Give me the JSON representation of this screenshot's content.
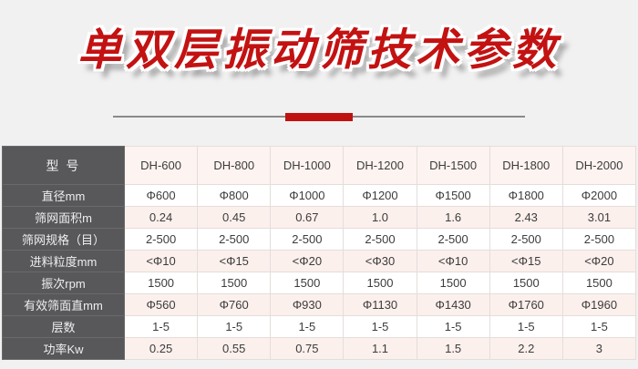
{
  "page": {
    "background": "#f1f1f1"
  },
  "title": {
    "text": "单双层振动筛技术参数",
    "color": "#c31212"
  },
  "divider": {
    "line_color": "#8a8a8a",
    "accent_color": "#c01111"
  },
  "table": {
    "corner_label": "型 号",
    "models": [
      "DH-600",
      "DH-800",
      "DH-1000",
      "DH-1200",
      "DH-1500",
      "DH-1800",
      "DH-2000"
    ],
    "rows": [
      {
        "label": "直径mm",
        "values": [
          "Φ600",
          "Φ800",
          "Φ1000",
          "Φ1200",
          "Φ1500",
          "Φ1800",
          "Φ2000"
        ]
      },
      {
        "label": "筛网面积m",
        "values": [
          "0.24",
          "0.45",
          "0.67",
          "1.0",
          "1.6",
          "2.43",
          "3.01"
        ]
      },
      {
        "label": "筛网规格（目）",
        "values": [
          "2-500",
          "2-500",
          "2-500",
          "2-500",
          "2-500",
          "2-500",
          "2-500"
        ]
      },
      {
        "label": "进料粒度mm",
        "values": [
          "<Φ10",
          "<Φ15",
          "<Φ20",
          "<Φ30",
          "<Φ10",
          "<Φ15",
          "<Φ20"
        ]
      },
      {
        "label": "振次rpm",
        "values": [
          "1500",
          "1500",
          "1500",
          "1500",
          "1500",
          "1500",
          "1500"
        ]
      },
      {
        "label": "有效筛面直mm",
        "values": [
          "Φ560",
          "Φ760",
          "Φ930",
          "Φ1130",
          "Φ1430",
          "Φ1760",
          "Φ1960"
        ]
      },
      {
        "label": "层数",
        "values": [
          "1-5",
          "1-5",
          "1-5",
          "1-5",
          "1-5",
          "1-5",
          "1-5"
        ]
      },
      {
        "label": "功率Kw",
        "values": [
          "0.25",
          "0.55",
          "0.75",
          "1.1",
          "1.5",
          "2.2",
          "3"
        ]
      }
    ],
    "colors": {
      "label_background": "#58585a",
      "label_text": "#eeeef0",
      "header_cell_background": "#fdf3f0",
      "row_alt_background": "#fcf0ec",
      "row_background": "#ffffff",
      "cell_text": "#3c3c3c",
      "grid_border": "#e3dedb"
    }
  }
}
